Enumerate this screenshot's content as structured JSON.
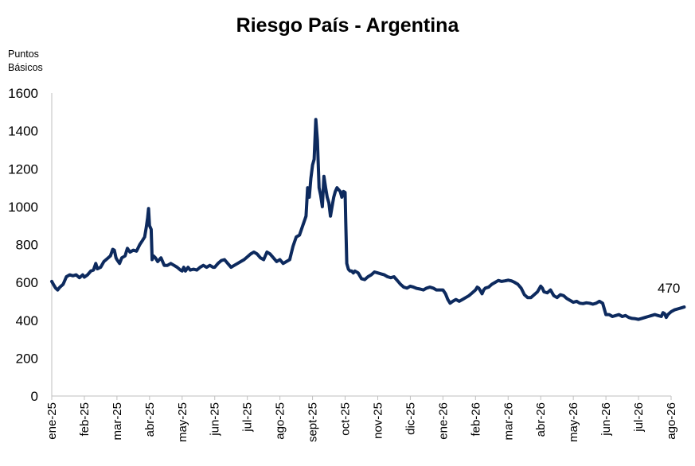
{
  "chart_data": {
    "type": "line",
    "title": "Riesgo País - Argentina",
    "ylabel_line1": "Puntos",
    "ylabel_line2": "Básicos",
    "xlabel": "",
    "ylim": [
      0,
      1600
    ],
    "yticks": [
      0,
      200,
      400,
      600,
      800,
      1000,
      1200,
      1400,
      1600
    ],
    "grid": false,
    "legend": "none",
    "line_color": "#0d2a5e",
    "categories": [
      "ene-25",
      "feb-25",
      "mar-25",
      "abr-25",
      "may-25",
      "jun-25",
      "jul-25",
      "ago-25",
      "sept-25",
      "oct-25",
      "nov-25",
      "dic-25",
      "ene-26",
      "feb-26",
      "mar-26",
      "abr-26",
      "may-26",
      "jun-26",
      "jul-26",
      "ago-26"
    ],
    "annotation": {
      "label": "470",
      "value": 470
    },
    "series": [
      {
        "values": [
          [
            0.0,
            605
          ],
          [
            0.05,
            590
          ],
          [
            0.12,
            570
          ],
          [
            0.18,
            560
          ],
          [
            0.25,
            575
          ],
          [
            0.35,
            590
          ],
          [
            0.45,
            630
          ],
          [
            0.55,
            640
          ],
          [
            0.65,
            635
          ],
          [
            0.75,
            640
          ],
          [
            0.85,
            625
          ],
          [
            0.95,
            640
          ],
          [
            1.0,
            628
          ],
          [
            1.1,
            640
          ],
          [
            1.2,
            660
          ],
          [
            1.28,
            665
          ],
          [
            1.35,
            700
          ],
          [
            1.4,
            672
          ],
          [
            1.5,
            680
          ],
          [
            1.6,
            710
          ],
          [
            1.7,
            725
          ],
          [
            1.8,
            740
          ],
          [
            1.87,
            775
          ],
          [
            1.92,
            770
          ],
          [
            1.97,
            730
          ],
          [
            2.0,
            720
          ],
          [
            2.08,
            700
          ],
          [
            2.15,
            730
          ],
          [
            2.25,
            740
          ],
          [
            2.32,
            780
          ],
          [
            2.4,
            760
          ],
          [
            2.5,
            770
          ],
          [
            2.6,
            765
          ],
          [
            2.7,
            800
          ],
          [
            2.78,
            820
          ],
          [
            2.85,
            840
          ],
          [
            2.9,
            890
          ],
          [
            2.94,
            940
          ],
          [
            2.97,
            990
          ],
          [
            3.0,
            900
          ],
          [
            3.05,
            880
          ],
          [
            3.08,
            720
          ],
          [
            3.12,
            740
          ],
          [
            3.18,
            730
          ],
          [
            3.25,
            710
          ],
          [
            3.35,
            730
          ],
          [
            3.45,
            690
          ],
          [
            3.55,
            690
          ],
          [
            3.65,
            700
          ],
          [
            3.75,
            690
          ],
          [
            3.85,
            680
          ],
          [
            3.95,
            665
          ],
          [
            4.0,
            660
          ],
          [
            4.05,
            680
          ],
          [
            4.1,
            660
          ],
          [
            4.18,
            680
          ],
          [
            4.25,
            665
          ],
          [
            4.35,
            670
          ],
          [
            4.45,
            665
          ],
          [
            4.55,
            680
          ],
          [
            4.65,
            690
          ],
          [
            4.75,
            680
          ],
          [
            4.85,
            690
          ],
          [
            4.95,
            680
          ],
          [
            5.0,
            680
          ],
          [
            5.1,
            700
          ],
          [
            5.2,
            715
          ],
          [
            5.3,
            720
          ],
          [
            5.4,
            700
          ],
          [
            5.5,
            680
          ],
          [
            5.6,
            690
          ],
          [
            5.7,
            700
          ],
          [
            5.8,
            710
          ],
          [
            5.9,
            720
          ],
          [
            6.0,
            735
          ],
          [
            6.1,
            750
          ],
          [
            6.2,
            760
          ],
          [
            6.3,
            750
          ],
          [
            6.4,
            730
          ],
          [
            6.5,
            720
          ],
          [
            6.6,
            760
          ],
          [
            6.7,
            750
          ],
          [
            6.8,
            730
          ],
          [
            6.9,
            710
          ],
          [
            7.0,
            720
          ],
          [
            7.1,
            700
          ],
          [
            7.2,
            710
          ],
          [
            7.3,
            720
          ],
          [
            7.4,
            790
          ],
          [
            7.5,
            840
          ],
          [
            7.6,
            850
          ],
          [
            7.7,
            900
          ],
          [
            7.8,
            950
          ],
          [
            7.85,
            1100
          ],
          [
            7.9,
            1050
          ],
          [
            7.95,
            1150
          ],
          [
            8.0,
            1220
          ],
          [
            8.05,
            1250
          ],
          [
            8.1,
            1460
          ],
          [
            8.15,
            1350
          ],
          [
            8.2,
            1100
          ],
          [
            8.25,
            1060
          ],
          [
            8.3,
            1000
          ],
          [
            8.35,
            1160
          ],
          [
            8.4,
            1100
          ],
          [
            8.45,
            1050
          ],
          [
            8.5,
            1020
          ],
          [
            8.55,
            950
          ],
          [
            8.6,
            1000
          ],
          [
            8.65,
            1050
          ],
          [
            8.7,
            1080
          ],
          [
            8.75,
            1100
          ],
          [
            8.8,
            1090
          ],
          [
            8.85,
            1080
          ],
          [
            8.9,
            1050
          ],
          [
            8.95,
            1080
          ],
          [
            9.0,
            1075
          ],
          [
            9.02,
            920
          ],
          [
            9.05,
            700
          ],
          [
            9.1,
            670
          ],
          [
            9.15,
            660
          ],
          [
            9.2,
            660
          ],
          [
            9.25,
            650
          ],
          [
            9.3,
            660
          ],
          [
            9.4,
            650
          ],
          [
            9.5,
            620
          ],
          [
            9.6,
            615
          ],
          [
            9.7,
            630
          ],
          [
            9.8,
            640
          ],
          [
            9.9,
            655
          ],
          [
            10.0,
            650
          ],
          [
            10.1,
            645
          ],
          [
            10.2,
            640
          ],
          [
            10.3,
            630
          ],
          [
            10.4,
            625
          ],
          [
            10.5,
            630
          ],
          [
            10.6,
            610
          ],
          [
            10.7,
            590
          ],
          [
            10.8,
            575
          ],
          [
            10.9,
            570
          ],
          [
            11.0,
            580
          ],
          [
            11.1,
            575
          ],
          [
            11.2,
            568
          ],
          [
            11.3,
            565
          ],
          [
            11.4,
            560
          ],
          [
            11.5,
            570
          ],
          [
            11.6,
            575
          ],
          [
            11.7,
            570
          ],
          [
            11.8,
            560
          ],
          [
            11.9,
            560
          ],
          [
            12.0,
            560
          ],
          [
            12.08,
            540
          ],
          [
            12.15,
            510
          ],
          [
            12.22,
            490
          ],
          [
            12.3,
            500
          ],
          [
            12.4,
            510
          ],
          [
            12.5,
            500
          ],
          [
            12.6,
            510
          ],
          [
            12.7,
            520
          ],
          [
            12.8,
            530
          ],
          [
            12.9,
            545
          ],
          [
            13.0,
            560
          ],
          [
            13.05,
            575
          ],
          [
            13.1,
            570
          ],
          [
            13.15,
            555
          ],
          [
            13.2,
            540
          ],
          [
            13.25,
            560
          ],
          [
            13.3,
            570
          ],
          [
            13.4,
            575
          ],
          [
            13.5,
            590
          ],
          [
            13.6,
            600
          ],
          [
            13.7,
            610
          ],
          [
            13.8,
            605
          ],
          [
            13.9,
            608
          ],
          [
            14.0,
            612
          ],
          [
            14.1,
            608
          ],
          [
            14.2,
            600
          ],
          [
            14.3,
            590
          ],
          [
            14.4,
            570
          ],
          [
            14.5,
            535
          ],
          [
            14.6,
            520
          ],
          [
            14.7,
            520
          ],
          [
            14.8,
            535
          ],
          [
            14.9,
            550
          ],
          [
            15.0,
            580
          ],
          [
            15.05,
            570
          ],
          [
            15.1,
            550
          ],
          [
            15.2,
            545
          ],
          [
            15.3,
            560
          ],
          [
            15.4,
            530
          ],
          [
            15.5,
            520
          ],
          [
            15.6,
            535
          ],
          [
            15.7,
            530
          ],
          [
            15.8,
            515
          ],
          [
            15.9,
            505
          ],
          [
            16.0,
            495
          ],
          [
            16.1,
            500
          ],
          [
            16.2,
            490
          ],
          [
            16.3,
            488
          ],
          [
            16.4,
            492
          ],
          [
            16.5,
            490
          ],
          [
            16.6,
            485
          ],
          [
            16.7,
            490
          ],
          [
            16.8,
            500
          ],
          [
            16.9,
            490
          ],
          [
            17.0,
            430
          ],
          [
            17.1,
            430
          ],
          [
            17.2,
            420
          ],
          [
            17.3,
            425
          ],
          [
            17.4,
            430
          ],
          [
            17.5,
            420
          ],
          [
            17.6,
            425
          ],
          [
            17.7,
            415
          ],
          [
            17.8,
            410
          ],
          [
            17.9,
            408
          ],
          [
            18.0,
            405
          ],
          [
            18.1,
            410
          ],
          [
            18.2,
            415
          ],
          [
            18.3,
            420
          ],
          [
            18.4,
            425
          ],
          [
            18.5,
            430
          ],
          [
            18.6,
            425
          ],
          [
            18.7,
            420
          ],
          [
            18.75,
            440
          ],
          [
            18.8,
            435
          ],
          [
            18.85,
            415
          ],
          [
            18.9,
            430
          ],
          [
            19.0,
            445
          ],
          [
            19.1,
            455
          ],
          [
            19.2,
            460
          ],
          [
            19.3,
            465
          ],
          [
            19.4,
            470
          ]
        ]
      }
    ]
  }
}
